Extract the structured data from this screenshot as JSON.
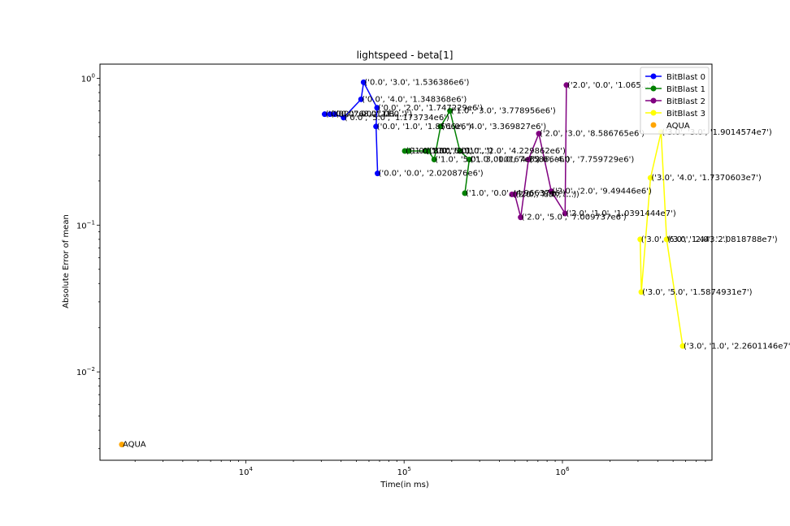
{
  "chart_data": {
    "type": "scatter",
    "title": "lightspeed - beta[1]",
    "xlabel": "Time(in ms)",
    "ylabel": "Absolute Error of mean",
    "xscale": "log",
    "yscale": "log",
    "xlim": [
      1200,
      8800000
    ],
    "ylim": [
      0.0025,
      1.25
    ],
    "x_tick_labels": [
      {
        "value": 10000,
        "base": "10",
        "exp": "4"
      },
      {
        "value": 100000,
        "base": "10",
        "exp": "5"
      },
      {
        "value": 1000000,
        "base": "10",
        "exp": "6"
      }
    ],
    "y_tick_labels": [
      {
        "value": 0.01,
        "base": "10",
        "exp": "−2"
      },
      {
        "value": 0.1,
        "base": "10",
        "exp": "−1"
      },
      {
        "value": 1,
        "base": "10",
        "exp": "0"
      }
    ],
    "legend_placement": "top-right",
    "series": [
      {
        "name": "BitBlast 0",
        "color": "#0000ff",
        "style": "line",
        "points": [
          {
            "x": 31500,
            "y": 0.57,
            "label": "('0.0', '7.0', '1.0E...')"
          },
          {
            "x": 34000,
            "y": 0.57,
            "label": "('0.0', '6.0', '1.0...')"
          },
          {
            "x": 36500,
            "y": 0.57,
            "label": "('0.0', '8.0', '1.0...')"
          },
          {
            "x": 41500,
            "y": 0.54,
            "label": "('0.0', '5.0', '1.173734e6')"
          },
          {
            "x": 53500,
            "y": 0.72,
            "label": "('0.0', '4.0', '1.348368e6')"
          },
          {
            "x": 55500,
            "y": 0.94,
            "label": "('0.0', '3.0', '1.536386e6')"
          },
          {
            "x": 67500,
            "y": 0.63,
            "label": "('0.0', '2.0', '1.747229e6')"
          },
          {
            "x": 66500,
            "y": 0.47,
            "label": "('0.0', '1.0', '1.8566e6')"
          },
          {
            "x": 68000,
            "y": 0.225,
            "label": "('0.0', '0.0', '2.020876e6')"
          }
        ]
      },
      {
        "name": "BitBlast 1",
        "color": "#008000",
        "style": "line",
        "points": [
          {
            "x": 101000,
            "y": 0.32,
            "label": "('1.0', '8.0', '...')"
          },
          {
            "x": 107000,
            "y": 0.32,
            "label": "('1.0', '7.0', '...')"
          },
          {
            "x": 136000,
            "y": 0.32,
            "label": "('1.0', '6.0', '...')"
          },
          {
            "x": 142000,
            "y": 0.32,
            "label": "('1.0', '2.0', '...')"
          },
          {
            "x": 155000,
            "y": 0.28,
            "label": "('1.0', '5.0', '3.000167e6')"
          },
          {
            "x": 170000,
            "y": 0.47,
            "label": "('1.0', '4.0', '3.369827e6')"
          },
          {
            "x": 195000,
            "y": 0.6,
            "label": "('1.0', '3.0', '3.778956e6')"
          },
          {
            "x": 225000,
            "y": 0.32,
            "label": "('1.0', '2.0', '4.229862e6')"
          },
          {
            "x": 258000,
            "y": 0.28,
            "label": "('1.0', '1.0', '4.75866e6')"
          },
          {
            "x": 242000,
            "y": 0.165,
            "label": "('1.0', '0.0', '4.96637e6')"
          }
        ]
      },
      {
        "name": "BitBlast 2",
        "color": "#800080",
        "style": "line",
        "points": [
          {
            "x": 480000,
            "y": 0.162,
            "label": "('2.0', '7.0', '...')"
          },
          {
            "x": 500000,
            "y": 0.162,
            "label": "('2.0', '8.0', '...')"
          },
          {
            "x": 545000,
            "y": 0.113,
            "label": "('2.0', '5.0', '7.009737e6')"
          },
          {
            "x": 610000,
            "y": 0.28,
            "label": "('2.0', '4.0', '7.759729e6')"
          },
          {
            "x": 710000,
            "y": 0.42,
            "label": "('2.0', '3.0', '8.586765e6')"
          },
          {
            "x": 850000,
            "y": 0.17,
            "label": "('2.0', '2.0', '9.49446e6')"
          },
          {
            "x": 1040000,
            "y": 0.12,
            "label": "('2.0', '1.0', '1.0391444e7')"
          },
          {
            "x": 1060000,
            "y": 0.9,
            "label": "('2.0', '0.0', '1.065...')"
          }
        ]
      },
      {
        "name": "BitBlast 3",
        "color": "#ffff00",
        "style": "line",
        "points": [
          {
            "x": 3100000,
            "y": 0.08,
            "label": "('3.0', '6.0', '1.443...')"
          },
          {
            "x": 3150000,
            "y": 0.035,
            "label": "('3.0', '5.0', '1.5874931e7')"
          },
          {
            "x": 3600000,
            "y": 0.21,
            "label": "('3.0', '4.0', '1.7370603e7')"
          },
          {
            "x": 4200000,
            "y": 0.43,
            "label": "('3.0', '3.0', '1.9014574e7')"
          },
          {
            "x": 4550000,
            "y": 0.08,
            "label": "('3.0', '2.0', '2.0818788e7')"
          },
          {
            "x": 5750000,
            "y": 0.015,
            "label": "('3.0', '1.0', '2.2601146e7')"
          }
        ]
      },
      {
        "name": "AQUA",
        "color": "#ffa500",
        "style": "marker",
        "points": [
          {
            "x": 1650,
            "y": 0.0032,
            "label": "AQUA"
          }
        ]
      }
    ]
  }
}
